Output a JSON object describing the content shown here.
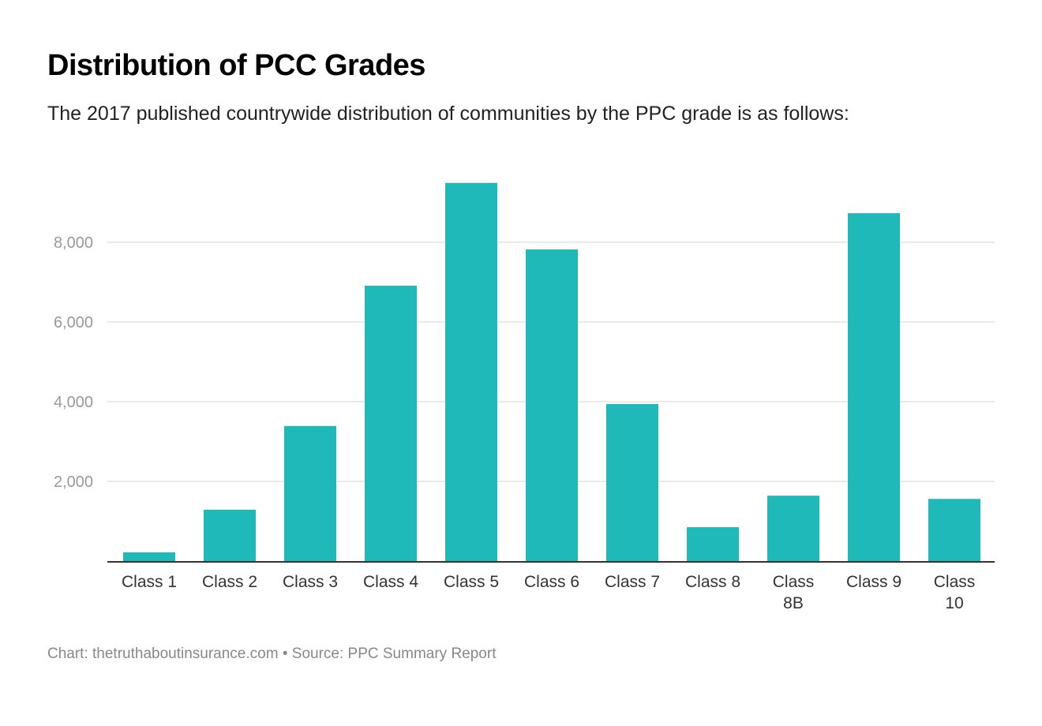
{
  "chart_data": {
    "type": "bar",
    "title": "Distribution of PCC Grades",
    "subtitle": "The 2017 published countrywide distribution of communities by the PPC grade is as follows:",
    "categories": [
      "Class 1",
      "Class 2",
      "Class 3",
      "Class 4",
      "Class 5",
      "Class 6",
      "Class 7",
      "Class 8",
      "Class 8B",
      "Class 9",
      "Class 10"
    ],
    "values": [
      220,
      1290,
      3390,
      6910,
      9490,
      7820,
      3940,
      850,
      1640,
      8730,
      1560
    ],
    "ylim": [
      0,
      9500
    ],
    "yticks": [
      2000,
      4000,
      6000,
      8000
    ],
    "ytick_labels": [
      "2,000",
      "4,000",
      "6,000",
      "8,000"
    ],
    "grid": true,
    "bar_color": "#20b9b9",
    "footer": {
      "chart_credit": "Chart: thetruthaboutinsurance.com",
      "separator": "•",
      "source": "Source: PPC Summary Report"
    }
  }
}
